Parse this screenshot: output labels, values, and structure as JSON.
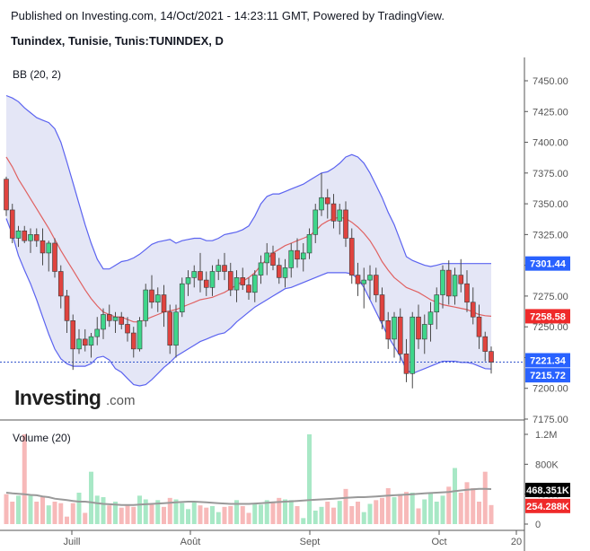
{
  "header": {
    "published": "Published on Investing.com, 14/Oct/2021 - 14:23:11 GMT, Powered by TradingView.",
    "symbol": "Tunindex, Tunisie, Tunis:TUNINDEX, D"
  },
  "logo": {
    "text": "Investing",
    "suffix": ".com"
  },
  "colors": {
    "up": "#3fd68b",
    "down": "#e0433f",
    "bb_band": "#5b63f0",
    "bb_fill": "#e4e6f6",
    "bb_basis": "#e06262",
    "vol_up": "#a8e8c6",
    "vol_down": "#f7b9b9",
    "vol_ma": "#999999",
    "last_line": "#3355cc"
  },
  "chart_data": [
    {
      "type": "candlestick",
      "title": "Tunindex, Tunisie, Tunis:TUNINDEX, D",
      "indicator_label": "BB (20, 2)",
      "y_ticks": [
        "7450.00",
        "7425.00",
        "7400.00",
        "7375.00",
        "7350.00",
        "7325.00",
        "7300.00",
        "7275.00",
        "7250.00",
        "7225.00",
        "7200.00",
        "7175.00"
      ],
      "ylim": [
        7175,
        7460
      ],
      "x_tick_labels": [
        "Juill",
        "Août",
        "Sept",
        "Oct",
        "20"
      ],
      "price_badges": [
        {
          "label": "7301.44",
          "value": 7301.44,
          "color": "#2962ff"
        },
        {
          "label": "7258.58",
          "value": 7258.58,
          "color": "#ef2a2a"
        },
        {
          "label": "7221.34",
          "value": 7221.34,
          "color": "#2962ff"
        },
        {
          "label": "7215.72",
          "value": 7215.72,
          "color": "#2962ff"
        }
      ],
      "last_price": 7221.34,
      "candles": [
        [
          7370,
          7372,
          7340,
          7345
        ],
        [
          7345,
          7350,
          7318,
          7322
        ],
        [
          7322,
          7332,
          7315,
          7328
        ],
        [
          7328,
          7332,
          7318,
          7320
        ],
        [
          7320,
          7330,
          7310,
          7325
        ],
        [
          7325,
          7330,
          7315,
          7320
        ],
        [
          7320,
          7330,
          7300,
          7310
        ],
        [
          7310,
          7320,
          7295,
          7318
        ],
        [
          7318,
          7322,
          7290,
          7295
        ],
        [
          7295,
          7300,
          7265,
          7275
        ],
        [
          7275,
          7280,
          7245,
          7255
        ],
        [
          7255,
          7260,
          7215,
          7232
        ],
        [
          7232,
          7248,
          7228,
          7240
        ],
        [
          7240,
          7248,
          7230,
          7235
        ],
        [
          7235,
          7245,
          7225,
          7242
        ],
        [
          7242,
          7258,
          7235,
          7248
        ],
        [
          7248,
          7265,
          7240,
          7260
        ],
        [
          7260,
          7268,
          7250,
          7255
        ],
        [
          7255,
          7262,
          7245,
          7258
        ],
        [
          7258,
          7262,
          7248,
          7252
        ],
        [
          7252,
          7258,
          7238,
          7245
        ],
        [
          7245,
          7250,
          7225,
          7232
        ],
        [
          7232,
          7258,
          7230,
          7255
        ],
        [
          7255,
          7285,
          7250,
          7280
        ],
        [
          7280,
          7292,
          7265,
          7270
        ],
        [
          7270,
          7282,
          7262,
          7276
        ],
        [
          7276,
          7284,
          7250,
          7262
        ],
        [
          7262,
          7268,
          7228,
          7235
        ],
        [
          7235,
          7268,
          7225,
          7262
        ],
        [
          7262,
          7290,
          7258,
          7285
        ],
        [
          7285,
          7296,
          7275,
          7290
        ],
        [
          7290,
          7300,
          7282,
          7295
        ],
        [
          7295,
          7310,
          7278,
          7288
        ],
        [
          7288,
          7295,
          7275,
          7282
        ],
        [
          7282,
          7300,
          7275,
          7295
        ],
        [
          7295,
          7305,
          7288,
          7300
        ],
        [
          7300,
          7310,
          7288,
          7295
        ],
        [
          7295,
          7302,
          7275,
          7280
        ],
        [
          7280,
          7296,
          7270,
          7290
        ],
        [
          7290,
          7298,
          7280,
          7284
        ],
        [
          7284,
          7290,
          7272,
          7278
        ],
        [
          7278,
          7296,
          7270,
          7292
        ],
        [
          7292,
          7308,
          7285,
          7302
        ],
        [
          7302,
          7318,
          7292,
          7310
        ],
        [
          7310,
          7316,
          7296,
          7300
        ],
        [
          7300,
          7306,
          7285,
          7290
        ],
        [
          7290,
          7305,
          7282,
          7298
        ],
        [
          7298,
          7318,
          7290,
          7312
        ],
        [
          7312,
          7322,
          7298,
          7305
        ],
        [
          7305,
          7318,
          7295,
          7310
        ],
        [
          7310,
          7330,
          7305,
          7325
        ],
        [
          7325,
          7350,
          7318,
          7345
        ],
        [
          7345,
          7375,
          7340,
          7355
        ],
        [
          7355,
          7362,
          7338,
          7350
        ],
        [
          7350,
          7358,
          7330,
          7336
        ],
        [
          7336,
          7350,
          7325,
          7345
        ],
        [
          7345,
          7352,
          7315,
          7322
        ],
        [
          7322,
          7330,
          7285,
          7292
        ],
        [
          7292,
          7302,
          7275,
          7285
        ],
        [
          7285,
          7298,
          7265,
          7288
        ],
        [
          7288,
          7300,
          7272,
          7292
        ],
        [
          7292,
          7298,
          7270,
          7276
        ],
        [
          7276,
          7282,
          7248,
          7255
        ],
        [
          7255,
          7262,
          7232,
          7240
        ],
        [
          7240,
          7262,
          7225,
          7258
        ],
        [
          7258,
          7265,
          7222,
          7228
        ],
        [
          7228,
          7240,
          7205,
          7212
        ],
        [
          7212,
          7262,
          7200,
          7258
        ],
        [
          7258,
          7268,
          7232,
          7240
        ],
        [
          7240,
          7260,
          7228,
          7252
        ],
        [
          7252,
          7270,
          7238,
          7262
        ],
        [
          7262,
          7282,
          7248,
          7276
        ],
        [
          7276,
          7300,
          7265,
          7296
        ],
        [
          7296,
          7304,
          7268,
          7275
        ],
        [
          7275,
          7298,
          7268,
          7292
        ],
        [
          7292,
          7305,
          7278,
          7285
        ],
        [
          7285,
          7296,
          7262,
          7270
        ],
        [
          7270,
          7282,
          7252,
          7258
        ],
        [
          7258,
          7268,
          7232,
          7242
        ],
        [
          7242,
          7246,
          7222,
          7230
        ],
        [
          7230,
          7234,
          7212,
          7221.34
        ]
      ],
      "bb_upper": [
        7438,
        7436,
        7433,
        7428,
        7424,
        7420,
        7418,
        7416,
        7411,
        7400,
        7384,
        7367,
        7350,
        7333,
        7318,
        7305,
        7297,
        7297,
        7300,
        7303,
        7304,
        7306,
        7309,
        7313,
        7317,
        7319,
        7320,
        7321,
        7318,
        7320,
        7321,
        7322,
        7322,
        7320,
        7320,
        7322,
        7325,
        7326,
        7327,
        7329,
        7332,
        7340,
        7350,
        7356,
        7358,
        7358,
        7360,
        7362,
        7364,
        7366,
        7369,
        7372,
        7375,
        7376,
        7379,
        7383,
        7388,
        7390,
        7388,
        7383,
        7375,
        7365,
        7355,
        7343,
        7333,
        7320,
        7307,
        7304,
        7302,
        7300,
        7299,
        7300,
        7301.44,
        7301.44,
        7301.44,
        7301.44,
        7301.44,
        7301.44,
        7301.44,
        7301.44,
        7301.44
      ],
      "bb_basis": [
        7388,
        7380,
        7370,
        7362,
        7354,
        7346,
        7338,
        7330,
        7321,
        7312,
        7304,
        7296,
        7288,
        7280,
        7273,
        7267,
        7262,
        7260,
        7258,
        7258,
        7256,
        7254,
        7254,
        7256,
        7258,
        7260,
        7262,
        7263,
        7264,
        7266,
        7268,
        7270,
        7272,
        7273,
        7274,
        7276,
        7278,
        7281,
        7284,
        7287,
        7290,
        7294,
        7300,
        7305,
        7310,
        7313,
        7316,
        7318,
        7320,
        7322,
        7324,
        7328,
        7333,
        7336,
        7338,
        7339,
        7338,
        7335,
        7331,
        7326,
        7320,
        7312,
        7303,
        7296,
        7290,
        7286,
        7282,
        7280,
        7278,
        7275,
        7272,
        7270,
        7268,
        7267,
        7266,
        7265,
        7264,
        7262,
        7260,
        7259,
        7258.58
      ],
      "bb_lower": [
        7338,
        7325,
        7308,
        7296,
        7285,
        7272,
        7258,
        7244,
        7232,
        7224,
        7220,
        7218,
        7218,
        7218,
        7220,
        7225,
        7226,
        7223,
        7216,
        7213,
        7208,
        7203,
        7202,
        7203,
        7207,
        7212,
        7217,
        7221,
        7226,
        7229,
        7232,
        7235,
        7238,
        7240,
        7242,
        7244,
        7245,
        7249,
        7254,
        7258,
        7262,
        7266,
        7269,
        7272,
        7275,
        7278,
        7281,
        7282,
        7284,
        7286,
        7288,
        7290,
        7292,
        7294,
        7294,
        7294,
        7294,
        7293,
        7289,
        7282,
        7272,
        7262,
        7252,
        7242,
        7234,
        7226,
        7215,
        7212,
        7214,
        7216,
        7218,
        7220,
        7222,
        7222,
        7222,
        7221,
        7221,
        7220,
        7218,
        7216,
        7215.72
      ]
    },
    {
      "type": "bar",
      "title": "Volume (20)",
      "y_ticks": [
        "1.2M",
        "800K",
        "400K",
        "0"
      ],
      "ylim": [
        0,
        1250000
      ],
      "volume_badges": [
        {
          "label": "468.351K",
          "value": 468351,
          "color": "#000000"
        },
        {
          "label": "254.288K",
          "value": 254288,
          "color": "#ef2a2a"
        }
      ],
      "volumes": [
        400000,
        300000,
        380000,
        1200000,
        380000,
        300000,
        360000,
        250000,
        300000,
        280000,
        100000,
        280000,
        420000,
        150000,
        700000,
        380000,
        360000,
        250000,
        300000,
        220000,
        260000,
        230000,
        380000,
        330000,
        260000,
        320000,
        230000,
        350000,
        330000,
        280000,
        200000,
        300000,
        250000,
        220000,
        240000,
        160000,
        230000,
        240000,
        320000,
        240000,
        150000,
        280000,
        260000,
        320000,
        300000,
        350000,
        330000,
        320000,
        240000,
        80000,
        1200000,
        180000,
        230000,
        300000,
        220000,
        310000,
        470000,
        240000,
        300000,
        160000,
        270000,
        320000,
        350000,
        480000,
        360000,
        400000,
        430000,
        420000,
        210000,
        330000,
        420000,
        300000,
        380000,
        500000,
        750000,
        420000,
        560000,
        480000,
        300000,
        700000,
        254288
      ],
      "volume_ma": [
        420000,
        410000,
        405000,
        400000,
        390000,
        385000,
        370000,
        360000,
        340000,
        330000,
        320000,
        310000,
        300000,
        300000,
        290000,
        280000,
        270000,
        265000,
        260000,
        255000,
        255000,
        255000,
        260000,
        265000,
        270000,
        275000,
        280000,
        285000,
        290000,
        295000,
        300000,
        300000,
        295000,
        290000,
        285000,
        280000,
        275000,
        270000,
        270000,
        270000,
        270000,
        275000,
        280000,
        285000,
        290000,
        295000,
        300000,
        305000,
        310000,
        315000,
        320000,
        325000,
        330000,
        335000,
        340000,
        345000,
        350000,
        355000,
        360000,
        360000,
        365000,
        370000,
        375000,
        380000,
        385000,
        390000,
        395000,
        400000,
        405000,
        410000,
        415000,
        420000,
        425000,
        430000,
        440000,
        450000,
        460000,
        465000,
        470000,
        470000,
        468351
      ]
    }
  ]
}
